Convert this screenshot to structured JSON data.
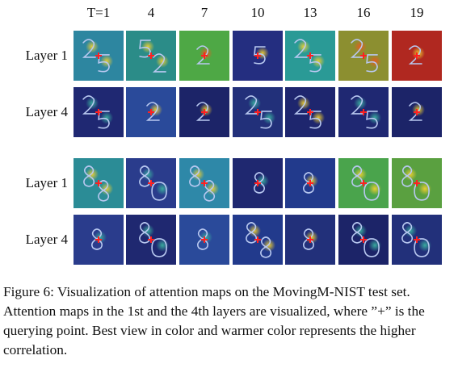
{
  "figure": {
    "columns": [
      "T=1",
      "4",
      "7",
      "10",
      "13",
      "16",
      "19"
    ],
    "groups": [
      {
        "rows": [
          {
            "label": "Layer 1",
            "tiles": [
              {
                "bg": "#2d86a0",
                "digits": "25",
                "hot": "#f0d030"
              },
              {
                "bg": "#2b8c88",
                "digits": "52",
                "hot": "#f0d030"
              },
              {
                "bg": "#4ea845",
                "digits": "2",
                "hot": "#e85a20"
              },
              {
                "bg": "#242e80",
                "digits": "5",
                "hot": "#f0d030"
              },
              {
                "bg": "#2a9a96",
                "digits": "25",
                "hot": "#f0d030"
              },
              {
                "bg": "#8c8f30",
                "digits": "25",
                "hot": "#e85a20"
              },
              {
                "bg": "#b02820",
                "digits": "2",
                "hot": "#f0d030"
              }
            ]
          },
          {
            "label": "Layer 4",
            "tiles": [
              {
                "bg": "#1f2872",
                "digits": "25",
                "hot": "#3ab0a0"
              },
              {
                "bg": "#2a4a9a",
                "digits": "2",
                "hot": "#f0d030"
              },
              {
                "bg": "#1c2468",
                "digits": "2",
                "hot": "#f0d030"
              },
              {
                "bg": "#22307a",
                "digits": "25",
                "hot": "#3ab0a0"
              },
              {
                "bg": "#1e266e",
                "digits": "25",
                "hot": "#f0d030"
              },
              {
                "bg": "#1f2872",
                "digits": "25",
                "hot": "#3ab0a0"
              },
              {
                "bg": "#1c2468",
                "digits": "2",
                "hot": "#f0d030"
              }
            ]
          }
        ]
      },
      {
        "rows": [
          {
            "label": "Layer 1",
            "tiles": [
              {
                "bg": "#2b8c96",
                "digits": "88",
                "hot": "#f0d030"
              },
              {
                "bg": "#2a3c8c",
                "digits": "80",
                "hot": "#3ab0a0"
              },
              {
                "bg": "#2e88a8",
                "digits": "88",
                "hot": "#f0d030"
              },
              {
                "bg": "#1f2870",
                "digits": "8",
                "hot": "#3ab0a0"
              },
              {
                "bg": "#223a8c",
                "digits": "8",
                "hot": "#f0d030"
              },
              {
                "bg": "#4aa44c",
                "digits": "80",
                "hot": "#f0d030"
              },
              {
                "bg": "#5aa040",
                "digits": "80",
                "hot": "#f0d030"
              }
            ]
          },
          {
            "label": "Layer 4",
            "tiles": [
              {
                "bg": "#2a3c8c",
                "digits": "8",
                "hot": "#3ab0a0"
              },
              {
                "bg": "#1f2870",
                "digits": "80",
                "hot": "#3ab0a0"
              },
              {
                "bg": "#2a4a9a",
                "digits": "8",
                "hot": "#3ab0a0"
              },
              {
                "bg": "#223a8c",
                "digits": "88",
                "hot": "#f0d030"
              },
              {
                "bg": "#22307a",
                "digits": "8",
                "hot": "#f0d030"
              },
              {
                "bg": "#1c2468",
                "digits": "80",
                "hot": "#3ab0a0"
              },
              {
                "bg": "#22307a",
                "digits": "80",
                "hot": "#3ab0a0"
              }
            ]
          }
        ]
      }
    ]
  },
  "caption": "Figure 6: Visualization of attention maps on the MovingM-NIST test set. Attention maps in the 1st and the 4th layers are visualized, where ”+” is the querying point. Best view in color and warmer color represents the higher correlation."
}
